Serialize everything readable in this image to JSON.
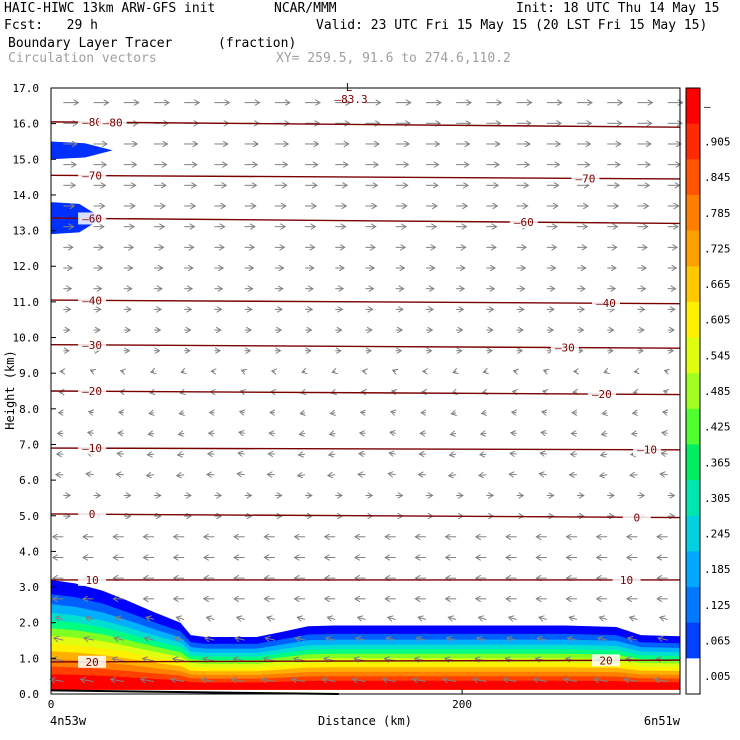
{
  "header": {
    "model": "HAIC-HIWC 13km ARW-GFS init",
    "center": "NCAR/MMM",
    "init": "Init: 18 UTC Thu 14 May 15",
    "fcst": "Fcst:   29 h",
    "valid": "Valid: 23 UTC Fri 15 May 15 (20 LST Fri 15 May 15)",
    "field": "Boundary Layer Tracer",
    "units": "(fraction)",
    "overlay": "Circulation vectors",
    "xy_range": "XY= 259.5, 91.6 to 274.6,110.2"
  },
  "chart_data": {
    "type": "heatmap",
    "title": "Boundary Layer Tracer",
    "units": "(fraction)",
    "xlabel": "Distance (km)",
    "ylabel": "Height (km)",
    "xlim": [
      0,
      306
    ],
    "ylim": [
      0,
      17
    ],
    "x_ticks": [
      0,
      200
    ],
    "x_endpoint_labels": {
      "left": "4n53w",
      "right": "6n51w"
    },
    "y_ticks": [
      "0.0",
      "1.0",
      "2.0",
      "3.0",
      "4.0",
      "5.0",
      "6.0",
      "7.0",
      "8.0",
      "9.0",
      "10.0",
      "11.0",
      "12.0",
      "13.0",
      "14.0",
      "15.0",
      "16.0",
      "17.0"
    ],
    "colorbar": {
      "labels": [
        "–",
        ".905",
        ".845",
        ".785",
        ".725",
        ".665",
        ".605",
        ".545",
        ".485",
        ".425",
        ".365",
        ".305",
        ".245",
        ".185",
        ".125",
        ".065",
        ".005"
      ],
      "colors": [
        "#ff0000",
        "#ff2a00",
        "#ff5400",
        "#ff7d00",
        "#ffa000",
        "#ffc800",
        "#fff000",
        "#e0ff10",
        "#a0ff20",
        "#50ff30",
        "#00ee60",
        "#00e6b0",
        "#00d0e0",
        "#00a8ff",
        "#0078ff",
        "#0040ff",
        "#ffffff"
      ]
    },
    "tracer_profile": {
      "x": [
        0,
        12,
        25,
        38,
        50,
        63,
        68,
        75,
        88,
        100,
        113,
        125,
        138,
        150,
        175,
        200,
        225,
        250,
        275,
        287,
        306
      ],
      "top": [
        3.2,
        3.1,
        2.9,
        2.6,
        2.3,
        2.0,
        1.65,
        1.6,
        1.6,
        1.6,
        1.75,
        1.9,
        1.92,
        1.92,
        1.92,
        1.92,
        1.92,
        1.92,
        1.88,
        1.65,
        1.62
      ]
    },
    "upper_tracer_patches": [
      {
        "x_extent": 30,
        "z_bottom": 15.0,
        "z_top": 15.5
      },
      {
        "x_extent": 25,
        "z_bottom": 12.9,
        "z_top": 13.8
      }
    ],
    "isotherms": [
      {
        "label": "–80",
        "z_left": 16.05,
        "z_right": 15.9
      },
      {
        "label": "–70",
        "z_left": 14.55,
        "z_right": 14.45
      },
      {
        "label": "–60",
        "z_left": 13.35,
        "z_right": 13.2
      },
      {
        "label": "–40",
        "z_left": 11.05,
        "z_right": 10.95
      },
      {
        "label": "–30",
        "z_left": 9.8,
        "z_right": 9.7
      },
      {
        "label": "–20",
        "z_left": 8.5,
        "z_right": 8.4
      },
      {
        "label": "–10",
        "z_left": 6.9,
        "z_right": 6.85
      },
      {
        "label": "0",
        "z_left": 5.05,
        "z_right": 4.95
      },
      {
        "label": "10",
        "z_left": 3.2,
        "z_right": 3.2
      },
      {
        "label": "20",
        "z_left": 0.9,
        "z_right": 0.95
      }
    ],
    "low_marker": {
      "symbol": "L",
      "value": "–83.3",
      "x": 145,
      "z": 16.8
    }
  }
}
